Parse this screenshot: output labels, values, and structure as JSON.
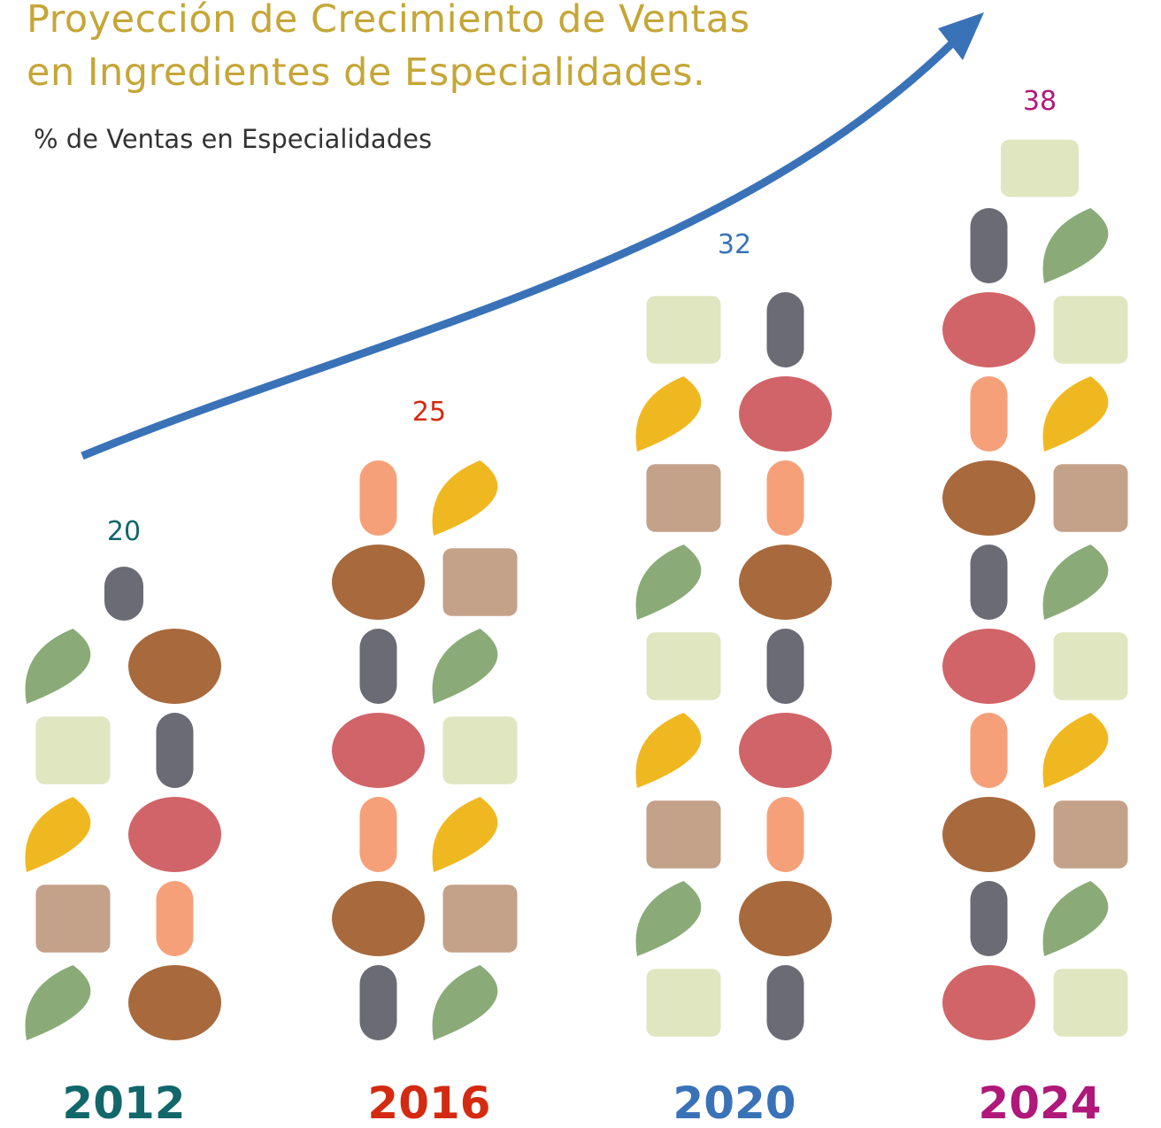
{
  "chart_data": {
    "type": "pictogram",
    "title": "Proyección de Crecimiento de Ventas en Ingredientes de Especialidades.",
    "subtitle": "% de Ventas en Especialidades",
    "categories": [
      "2012",
      "2016",
      "2020",
      "2024"
    ],
    "values": [
      20,
      25,
      32,
      38
    ],
    "colors": [
      "#12676a",
      "#d42a12",
      "#3a72b8",
      "#b0187a"
    ]
  }
}
